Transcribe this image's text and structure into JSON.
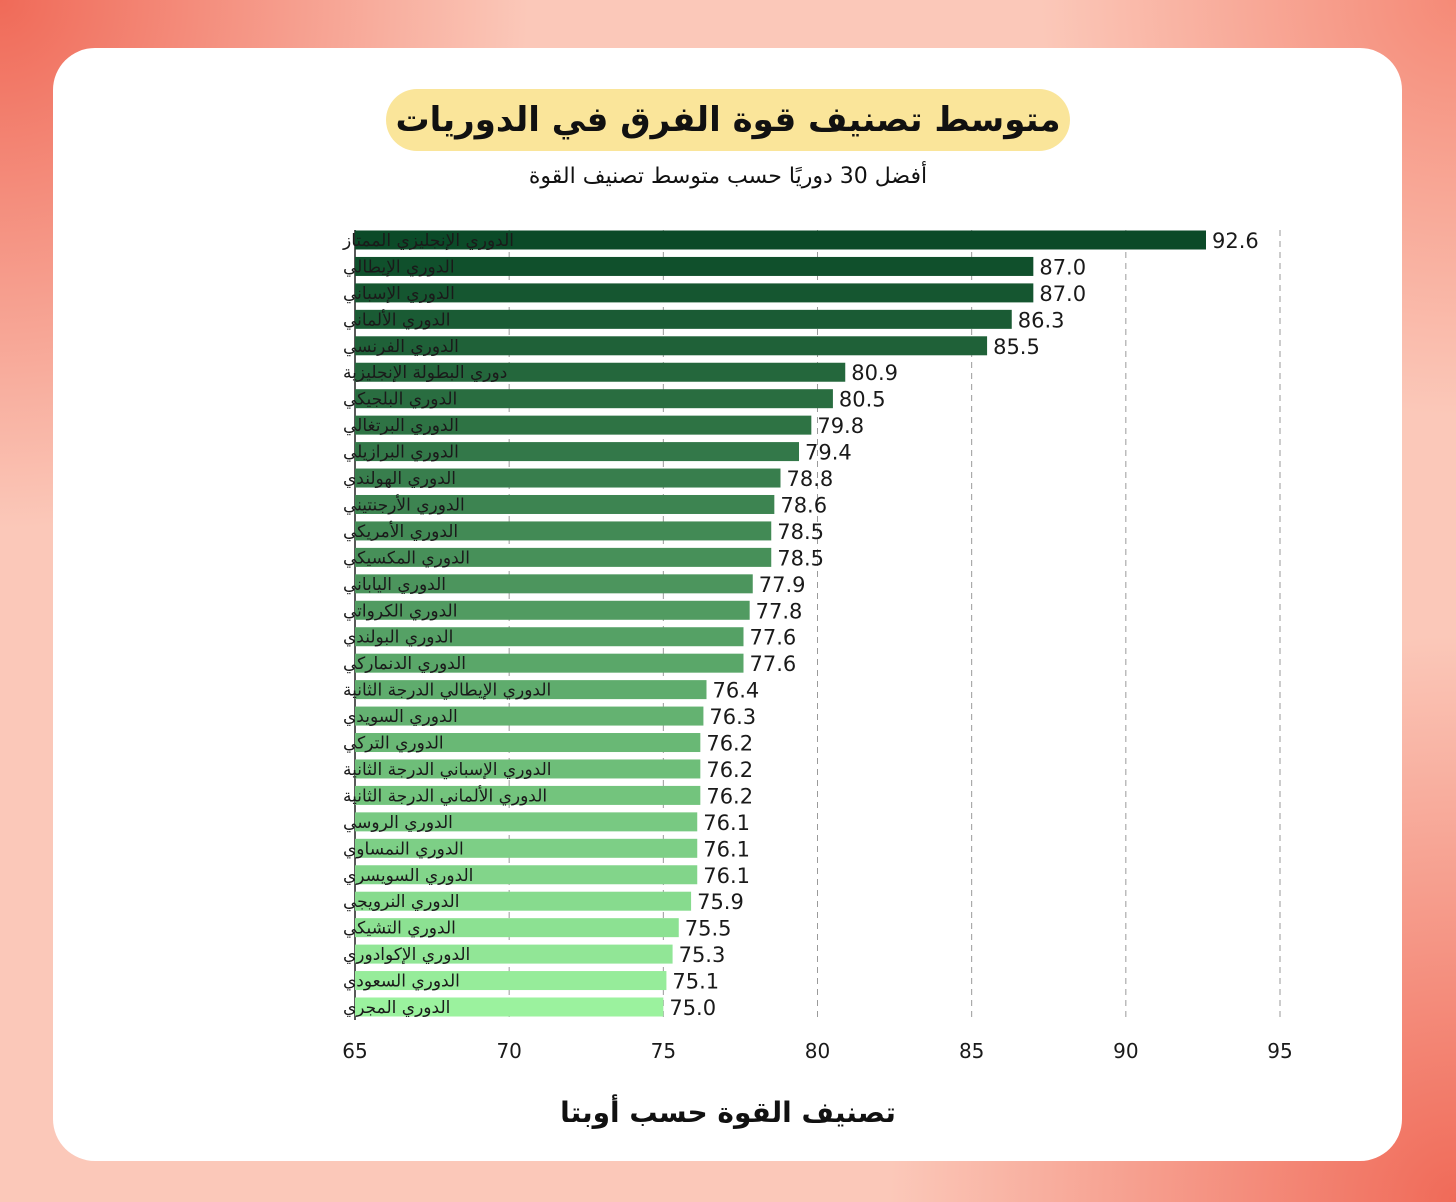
{
  "title": "متوسط تصنيف قوة الفرق في الدوريات",
  "subtitle": "أفضل 30 دوريًا حسب متوسط تصنيف القوة",
  "chart_data": {
    "type": "bar",
    "orientation": "horizontal",
    "title": "متوسط تصنيف قوة الفرق في الدوريات",
    "subtitle": "أفضل 30 دوريًا حسب متوسط تصنيف القوة",
    "xlabel": "تصنيف القوة حسب أوبتا",
    "ylabel": "",
    "xlim": [
      65,
      95
    ],
    "xticks": [
      65,
      70,
      75,
      80,
      85,
      90,
      95
    ],
    "grid": "vertical dashed",
    "color_start": "#0b4a28",
    "color_end": "#9bf29e",
    "categories": [
      "الدوري الإنجليزي الممتاز",
      "الدوري الإيطالي",
      "الدوري الإسباني",
      "الدوري الألماني",
      "الدوري الفرنسي",
      "دوري البطولة الإنجليزية",
      "الدوري البلجيكي",
      "الدوري البرتغالي",
      "الدوري البرازيلي",
      "الدوري الهولندي",
      "الدوري الأرجنتيني",
      "الدوري الأمريكي",
      "الدوري المكسيكي",
      "الدوري الياباني",
      "الدوري الكرواتي",
      "الدوري البولندي",
      "الدوري الدنماركي",
      "الدوري الإيطالي الدرجة الثانية",
      "الدوري السويدي",
      "الدوري التركي",
      "الدوري الإسباني الدرجة الثانية",
      "الدوري الألماني الدرجة الثانية",
      "الدوري الروسي",
      "الدوري النمساوي",
      "الدوري السويسري",
      "الدوري النرويجي",
      "الدوري التشيكي",
      "الدوري الإكوادوري",
      "الدوري السعودي",
      "الدوري المجري"
    ],
    "values": [
      92.6,
      87.0,
      87.0,
      86.3,
      85.5,
      80.9,
      80.5,
      79.8,
      79.4,
      78.8,
      78.6,
      78.5,
      78.5,
      77.9,
      77.8,
      77.6,
      77.6,
      76.4,
      76.3,
      76.2,
      76.2,
      76.2,
      76.1,
      76.1,
      76.1,
      75.9,
      75.5,
      75.3,
      75.1,
      75.0
    ]
  }
}
